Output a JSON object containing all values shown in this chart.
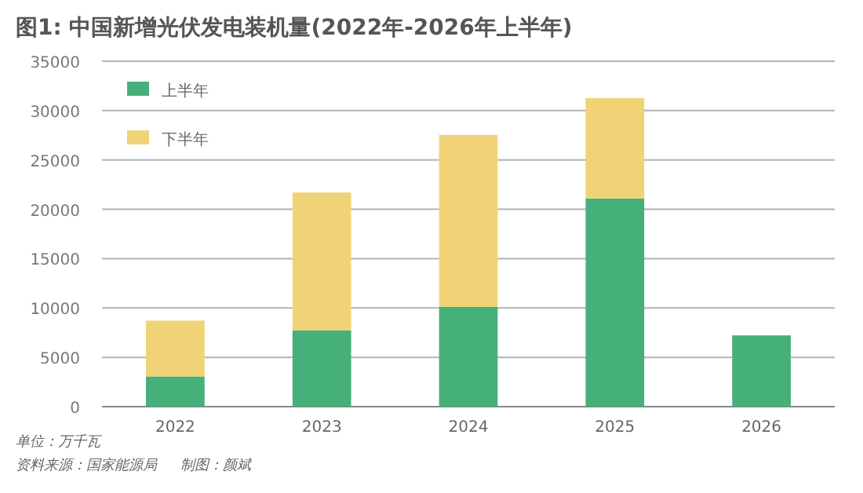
{
  "chart_data": {
    "type": "bar",
    "title": "图1: 中国新增光伏发电装机量(2022年-2026年上半年)",
    "categories": [
      "2022",
      "2023",
      "2024",
      "2025",
      "2026"
    ],
    "series": [
      {
        "name": "上半年",
        "color": "#46b07a",
        "values": [
          3060,
          7720,
          10110,
          21100,
          7220
        ]
      },
      {
        "name": "下半年",
        "color": "#f0d377",
        "values": [
          5660,
          13980,
          17420,
          10160,
          null
        ]
      }
    ],
    "stacked": true,
    "ylim": [
      0,
      35000
    ],
    "yticks": [
      0,
      5000,
      10000,
      15000,
      20000,
      25000,
      30000,
      35000
    ],
    "grid": "y",
    "legend": "top left",
    "annotations": [
      "单位：万千瓦",
      "资料来源：国家能源局",
      "制图：颜斌"
    ]
  }
}
